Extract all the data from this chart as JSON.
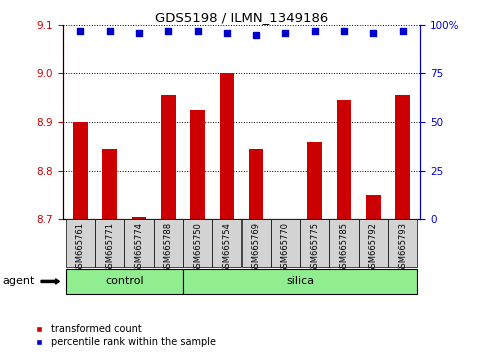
{
  "title": "GDS5198 / ILMN_1349186",
  "samples": [
    "GSM665761",
    "GSM665771",
    "GSM665774",
    "GSM665788",
    "GSM665750",
    "GSM665754",
    "GSM665769",
    "GSM665770",
    "GSM665775",
    "GSM665785",
    "GSM665792",
    "GSM665793"
  ],
  "transformed_count": [
    8.9,
    8.845,
    8.705,
    8.955,
    8.925,
    9.0,
    8.845,
    8.7,
    8.86,
    8.945,
    8.75,
    8.955
  ],
  "percentile_rank": [
    97,
    97,
    96,
    97,
    97,
    96,
    95,
    96,
    97,
    97,
    96,
    97
  ],
  "ylim_left": [
    8.7,
    9.1
  ],
  "ylim_right": [
    0,
    100
  ],
  "yticks_left": [
    8.7,
    8.8,
    8.9,
    9.0,
    9.1
  ],
  "yticks_right": [
    0,
    25,
    50,
    75,
    100
  ],
  "bar_color": "#cc0000",
  "dot_color": "#0000cc",
  "bar_bottom": 8.7,
  "n_control": 4,
  "n_silica": 8,
  "control_color": "#90ee90",
  "silica_color": "#90ee90",
  "agent_label": "agent",
  "control_label": "control",
  "silica_label": "silica",
  "legend_transformed": "transformed count",
  "legend_percentile": "percentile rank within the sample",
  "tick_color_left": "#cc0000",
  "tick_color_right": "#0000cc",
  "xlabel_area_color": "#d3d3d3"
}
